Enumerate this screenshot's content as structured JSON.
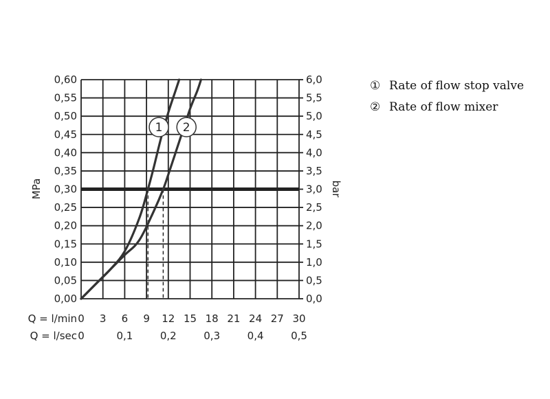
{
  "chart_data": {
    "type": "line",
    "title": "",
    "y_left": {
      "label": "MPa",
      "ticks": [
        "0,00",
        "0,05",
        "0,10",
        "0,15",
        "0,20",
        "0,25",
        "0,30",
        "0,35",
        "0,40",
        "0,45",
        "0,50",
        "0,55",
        "0,60"
      ],
      "ylim": [
        0,
        0.6
      ]
    },
    "y_right": {
      "label": "bar",
      "ticks": [
        "0,0",
        "0,5",
        "1,0",
        "1,5",
        "2,0",
        "2,5",
        "3,0",
        "3,5",
        "4,0",
        "4,5",
        "5,0",
        "5,5",
        "6,0"
      ],
      "ylim": [
        0,
        6.0
      ]
    },
    "x_primary": {
      "label": "Q = l/min",
      "ticks": [
        "0",
        "3",
        "6",
        "9",
        "12",
        "15",
        "18",
        "21",
        "24",
        "27",
        "30"
      ],
      "xlim": [
        0,
        30
      ]
    },
    "x_secondary": {
      "label": "Q = l/sec",
      "ticks": [
        "0",
        "0,1",
        "0,2",
        "0,3",
        "0,4",
        "0,5"
      ]
    },
    "grid": true,
    "reference_line": {
      "y": 0.3
    },
    "series": [
      {
        "name": "Rate of flow stop valve",
        "marker": "1",
        "x": [
          0,
          2,
          4,
          6,
          8,
          9.2,
          10,
          11,
          12,
          13,
          13.5
        ],
        "y": [
          0,
          0.04,
          0.08,
          0.13,
          0.22,
          0.3,
          0.36,
          0.44,
          0.51,
          0.57,
          0.6
        ]
      },
      {
        "name": "Rate of flow mixer",
        "marker": "2",
        "x": [
          0,
          2,
          4,
          6,
          8,
          10,
          11.3,
          12,
          13,
          14,
          15,
          16,
          16.5
        ],
        "y": [
          0,
          0.04,
          0.08,
          0.12,
          0.16,
          0.24,
          0.3,
          0.34,
          0.4,
          0.46,
          0.52,
          0.57,
          0.6
        ]
      }
    ],
    "dashed_markers_x": [
      9.2,
      11.3
    ],
    "legend": [
      {
        "symbol": "①",
        "text": "Rate of flow stop valve"
      },
      {
        "symbol": "②",
        "text": "Rate of flow mixer"
      }
    ],
    "legend_position": "right"
  },
  "colors": {
    "curve": "#333333",
    "grid": "#222222",
    "reference": "#222222"
  }
}
